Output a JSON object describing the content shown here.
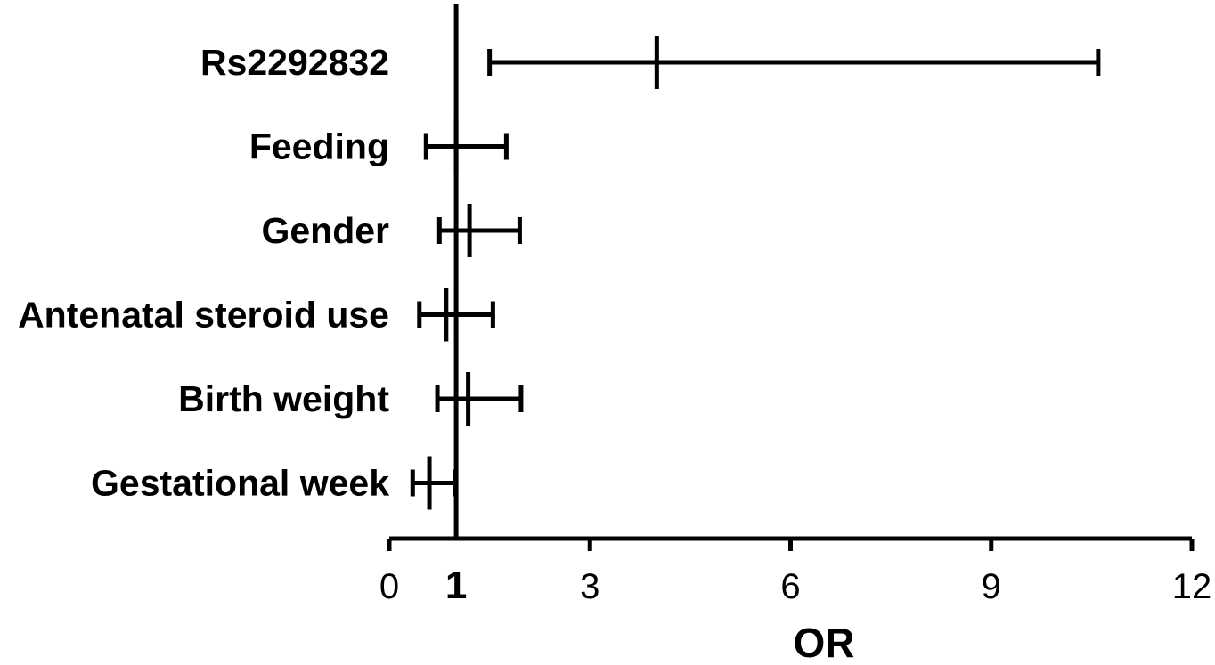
{
  "chart_data": {
    "type": "forest",
    "xlabel": "OR",
    "xlim": [
      0,
      12
    ],
    "x_ticks": [
      "0",
      "3",
      "6",
      "9",
      "12"
    ],
    "reference_line": {
      "x": 1,
      "label": "1"
    },
    "grid": false,
    "legend": "none",
    "rows": [
      {
        "label": "Rs2292832",
        "or": 4.0,
        "lower": 1.5,
        "upper": 10.6
      },
      {
        "label": "Feeding",
        "or": 1.0,
        "lower": 0.55,
        "upper": 1.75
      },
      {
        "label": "Gender",
        "or": 1.2,
        "lower": 0.75,
        "upper": 1.95
      },
      {
        "label": "Antenatal steroid use",
        "or": 0.85,
        "lower": 0.45,
        "upper": 1.55
      },
      {
        "label": "Birth weight",
        "or": 1.18,
        "lower": 0.72,
        "upper": 1.97
      },
      {
        "label": "Gestational week",
        "or": 0.6,
        "lower": 0.35,
        "upper": 0.98
      }
    ]
  }
}
